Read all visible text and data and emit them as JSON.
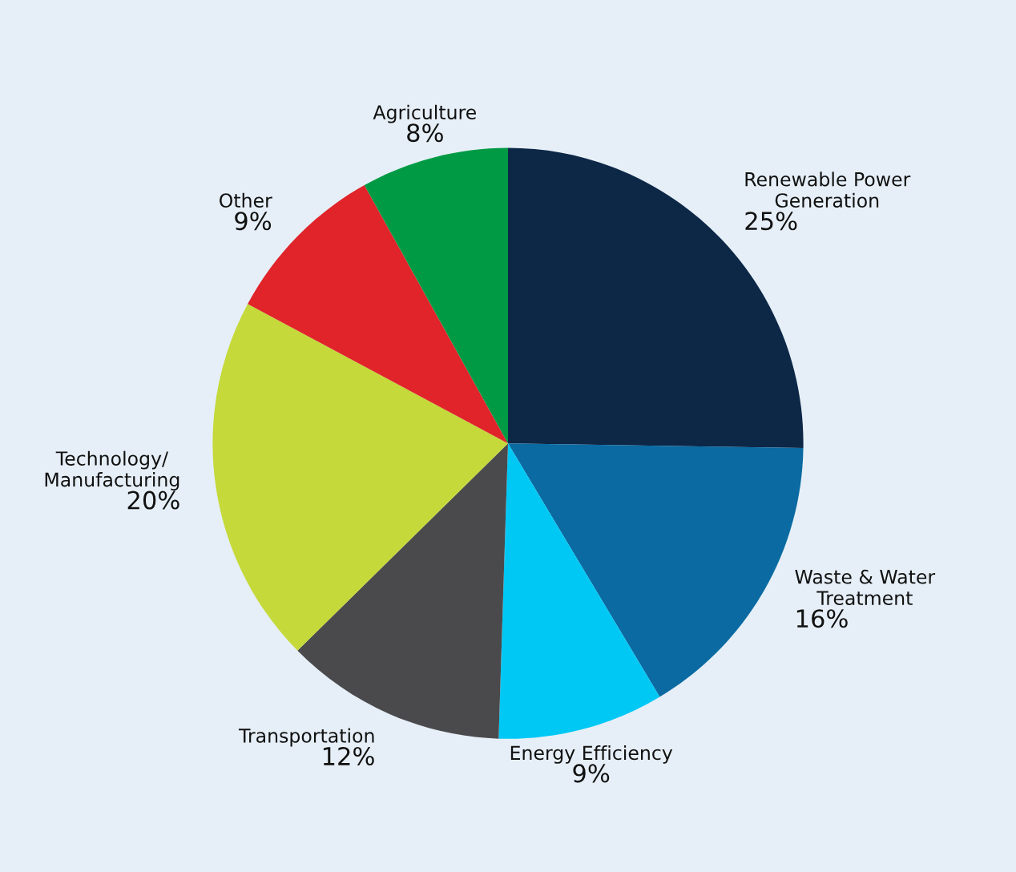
{
  "chart_data": {
    "type": "pie",
    "categories": [
      "Renewable Power\nGeneration",
      "Waste & Water\nTreatment",
      "Energy Efficiency",
      "Transportation",
      "Technology/\nManufacturing",
      "Other",
      "Agriculture"
    ],
    "values": [
      25,
      16,
      9,
      12,
      20,
      9,
      8
    ],
    "value_labels": [
      "25%",
      "16%",
      "9%",
      "12%",
      "20%",
      "9%",
      "8%"
    ],
    "colors": [
      "#0d2747",
      "#0a6aa1",
      "#00c8f5",
      "#4a4a4d",
      "#c5d93a",
      "#e0242a",
      "#009a44"
    ]
  }
}
